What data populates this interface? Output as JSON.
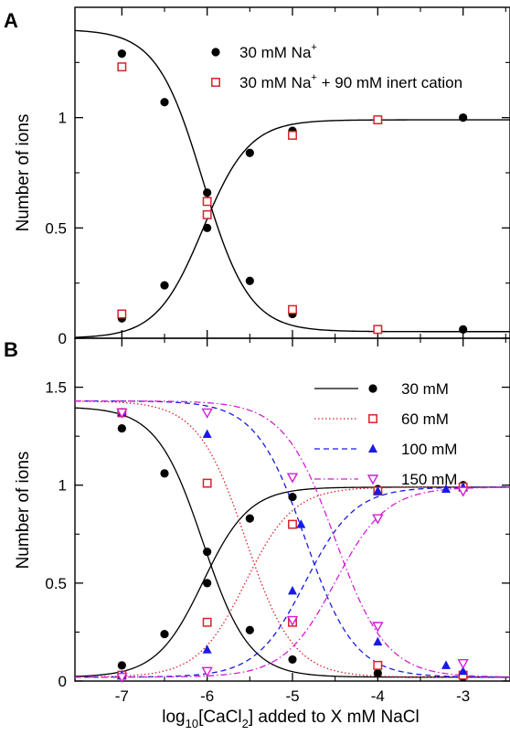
{
  "colors": {
    "black": "#000000",
    "red": "#d8222a",
    "blue": "#1a1ae6",
    "magenta": "#d21fd2",
    "brown": "#b05a10"
  },
  "chart_data": [
    {
      "panel_label": "A",
      "type": "scatter",
      "ylabel": "Number of ions",
      "xlim": [
        -7.55,
        -2.45
      ],
      "ylim": [
        0,
        1.5
      ],
      "x_ticks": [
        "-7",
        "-6",
        "-5",
        "-4",
        "-3"
      ],
      "y_ticks": [
        "0",
        "0.5",
        "1"
      ],
      "legend_position": "top-right",
      "series": [
        {
          "name": "30 mM Na⁺",
          "name_main": "30 mM Na",
          "name_sup": "+",
          "name_rest": "",
          "marker": "filled-circle",
          "color": "#000000",
          "points": [
            [
              -7,
              0.09
            ],
            [
              -6.5,
              0.24
            ],
            [
              -6,
              0.5
            ],
            [
              -5.5,
              0.26
            ],
            [
              -5,
              0.11
            ],
            [
              -4,
              0.04
            ],
            [
              -3,
              0.04
            ],
            [
              -7,
              1.29
            ],
            [
              -6.5,
              1.07
            ],
            [
              -6,
              0.66
            ],
            [
              -5.5,
              0.84
            ],
            [
              -5,
              0.94
            ],
            [
              -4,
              0.99
            ],
            [
              -3,
              1.0
            ]
          ]
        },
        {
          "name": "30 mM Na⁺ + 90 mM inert cation",
          "name_main": "30 mM Na",
          "name_sup": "+",
          "name_rest": " + 90 mM inert cation",
          "marker": "open-square",
          "color": "#d8222a",
          "points": [
            [
              -7,
              0.11
            ],
            [
              -6,
              0.56
            ],
            [
              -5,
              0.13
            ],
            [
              -4,
              0.04
            ],
            [
              -7,
              1.23
            ],
            [
              -6,
              0.62
            ],
            [
              -5,
              0.92
            ],
            [
              -4,
              0.99
            ]
          ]
        }
      ],
      "fit_curves": [
        {
          "kind": "decreasing",
          "top": 1.4,
          "bottom": 0.03,
          "midpoint": -6.05,
          "slope": 1.6,
          "color": "#000000",
          "dash": ""
        },
        {
          "kind": "increasing",
          "top": 0.99,
          "bottom": 0.0,
          "midpoint": -6.05,
          "slope": 1.6,
          "color": "#000000",
          "dash": ""
        }
      ]
    },
    {
      "panel_label": "B",
      "type": "scatter",
      "xlabel": "log10[CaCl2] added to X mM NaCl",
      "xlabel_parts": {
        "a": "log",
        "a_sub": "10",
        "b": "[CaCl",
        "b_sub": "2",
        "c": "] added to X mM NaCl"
      },
      "ylabel": "Number of ions",
      "xlim": [
        -7.55,
        -2.45
      ],
      "ylim": [
        0,
        1.75
      ],
      "x_ticks": [
        "-7",
        "-6",
        "-5",
        "-4",
        "-3"
      ],
      "y_ticks": [
        "0",
        "0.5",
        "1",
        "1.5"
      ],
      "legend_position": "top-right",
      "series": [
        {
          "name": "30 mM",
          "marker": "filled-circle",
          "color": "#000000",
          "dash": "",
          "points": [
            [
              -7,
              0.08
            ],
            [
              -6.5,
              0.24
            ],
            [
              -6,
              0.5
            ],
            [
              -5.5,
              0.26
            ],
            [
              -5,
              0.11
            ],
            [
              -4,
              0.04
            ],
            [
              -3,
              0.02
            ],
            [
              -7,
              1.29
            ],
            [
              -6.5,
              1.06
            ],
            [
              -6,
              0.66
            ],
            [
              -5.5,
              0.83
            ],
            [
              -5,
              0.94
            ],
            [
              -4,
              0.98
            ],
            [
              -3,
              1.0
            ]
          ],
          "fit": {
            "midpoint": -6.05,
            "slope": 1.6,
            "top": 1.4,
            "bottom": 0.02,
            "rise_top": 0.99
          }
        },
        {
          "name": "60 mM",
          "marker": "open-square",
          "color": "#d8222a",
          "dash": "1.5,2.5",
          "points": [
            [
              -7,
              0.03
            ],
            [
              -6,
              0.3
            ],
            [
              -5,
              0.3
            ],
            [
              -4,
              0.08
            ],
            [
              -3,
              0.03
            ],
            [
              -7,
              1.37
            ],
            [
              -6,
              1.01
            ],
            [
              -5,
              0.8
            ],
            [
              -4,
              0.97
            ],
            [
              -3,
              0.99
            ]
          ],
          "fit": {
            "midpoint": -5.55,
            "slope": 1.55,
            "top": 1.43,
            "bottom": 0.02,
            "rise_top": 0.99
          }
        },
        {
          "name": "100 mM",
          "marker": "filled-triangle-up",
          "color": "#1a1ae6",
          "dash": "6,4",
          "points": [
            [
              -7,
              0.03
            ],
            [
              -6,
              0.16
            ],
            [
              -5,
              0.46
            ],
            [
              -4,
              0.2
            ],
            [
              -3.2,
              0.08
            ],
            [
              -3,
              0.05
            ],
            [
              -7,
              1.37
            ],
            [
              -6,
              1.26
            ],
            [
              -4.9,
              0.8
            ],
            [
              -4,
              0.97
            ],
            [
              -3.2,
              0.98
            ],
            [
              -3,
              0.99
            ]
          ],
          "fit": {
            "midpoint": -4.85,
            "slope": 1.5,
            "top": 1.43,
            "bottom": 0.02,
            "rise_top": 0.99
          }
        },
        {
          "name": "150 mM",
          "marker": "open-triangle-down",
          "color": "#d21fd2",
          "dash": "7,3,1.5,3",
          "points": [
            [
              -7,
              0.02
            ],
            [
              -6,
              0.05
            ],
            [
              -5,
              0.31
            ],
            [
              -4,
              0.28
            ],
            [
              -3,
              0.09
            ],
            [
              -7,
              1.37
            ],
            [
              -6,
              1.37
            ],
            [
              -5,
              1.04
            ],
            [
              -4,
              0.83
            ],
            [
              -3,
              0.97
            ]
          ],
          "fit": {
            "midpoint": -4.5,
            "slope": 1.45,
            "top": 1.43,
            "bottom": 0.02,
            "rise_top": 0.99
          }
        }
      ]
    }
  ]
}
